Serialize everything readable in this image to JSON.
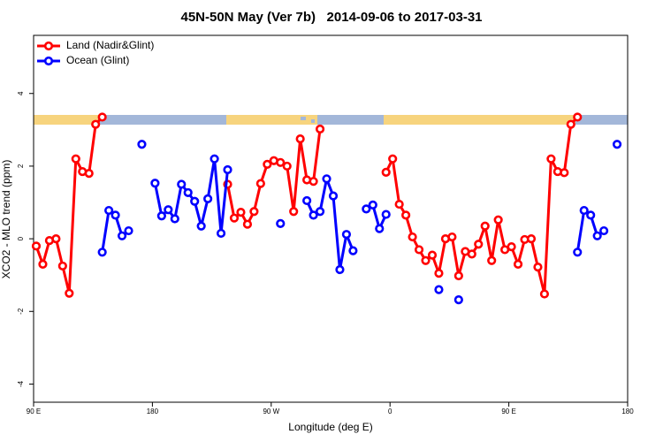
{
  "chart_data": {
    "type": "line",
    "title": "45N-50N May (Ver 7b)   2014-09-06 to 2017-03-31",
    "x_label": "Longitude (deg E)",
    "y_label": "XCO2 - MLO trend (ppm)",
    "x": [
      92,
      97,
      102,
      107,
      112,
      117,
      122,
      127,
      132,
      137,
      142,
      147,
      152,
      157,
      162,
      167,
      172,
      177,
      182,
      187,
      192,
      197,
      202,
      207,
      212,
      217,
      222,
      227,
      232,
      237,
      242,
      247,
      252,
      257,
      262,
      267,
      272,
      277,
      282,
      287,
      292,
      297,
      302,
      307,
      312,
      317,
      322,
      327,
      332,
      337,
      342,
      347,
      352,
      357,
      362,
      367,
      372,
      377,
      382,
      387,
      392,
      397,
      402,
      407,
      412,
      417,
      422,
      427,
      432,
      437,
      442,
      447,
      452,
      457,
      462,
      467,
      472,
      477,
      482,
      487,
      492,
      497,
      502,
      507,
      512,
      517,
      522,
      527,
      532
    ],
    "xlim": [
      90,
      540
    ],
    "xticks": [
      {
        "value": 90,
        "label": "90 E"
      },
      180,
      {
        "value": 270,
        "label": "90 W"
      },
      {
        "value": 360,
        "label": "0"
      },
      {
        "value": 450,
        "label": "90 E"
      },
      {
        "value": 540,
        "label": "180"
      }
    ],
    "ylim": [
      -4.5,
      5.6
    ],
    "yticks": [
      -4,
      -2,
      0,
      2,
      4
    ],
    "legend_position": "top-left",
    "series": [
      {
        "name": "Land (Nadir&Glint)",
        "color": "#ff0000",
        "values": [
          -0.2,
          -0.7,
          -0.05,
          0,
          -0.75,
          -1.5,
          2.2,
          1.85,
          1.8,
          3.15,
          3.35,
          null,
          null,
          null,
          null,
          null,
          null,
          null,
          null,
          null,
          null,
          null,
          null,
          null,
          null,
          null,
          null,
          null,
          null,
          1.5,
          0.57,
          0.73,
          0.4,
          0.75,
          1.52,
          2.05,
          2.15,
          2.1,
          2.0,
          0.75,
          2.75,
          1.62,
          1.58,
          3.02,
          null,
          null,
          null,
          null,
          null,
          null,
          null,
          null,
          null,
          1.83,
          2.2,
          0.95,
          0.65,
          0.05,
          -0.3,
          -0.6,
          -0.45,
          -0.95,
          0,
          0.05,
          -1.02,
          -0.35,
          -0.42,
          -0.15,
          0.35,
          -0.6,
          0.52,
          -0.3,
          -0.22,
          -0.7,
          -0.02,
          0,
          -0.78,
          -1.52,
          2.2,
          1.85,
          1.82,
          3.15,
          3.35,
          null,
          null,
          null,
          null,
          null,
          null
        ]
      },
      {
        "name": "Ocean (Glint)",
        "color": "#0000ff",
        "values": [
          null,
          null,
          null,
          null,
          null,
          null,
          null,
          null,
          null,
          null,
          -0.37,
          0.78,
          0.65,
          0.08,
          0.22,
          null,
          2.6,
          null,
          1.53,
          0.63,
          0.8,
          0.55,
          1.5,
          1.27,
          1.03,
          0.35,
          1.1,
          2.2,
          0.15,
          1.9,
          null,
          null,
          null,
          null,
          null,
          null,
          null,
          0.42,
          null,
          null,
          null,
          1.05,
          0.65,
          0.75,
          1.65,
          1.18,
          -0.85,
          0.12,
          -0.33,
          null,
          0.82,
          0.93,
          0.28,
          0.67,
          null,
          null,
          null,
          null,
          null,
          null,
          null,
          -1.4,
          null,
          null,
          -1.68,
          null,
          null,
          null,
          null,
          null,
          null,
          null,
          null,
          null,
          null,
          null,
          null,
          null,
          null,
          null,
          null,
          null,
          -0.37,
          0.78,
          0.65,
          0.08,
          0.22,
          null,
          2.6
        ]
      }
    ]
  }
}
